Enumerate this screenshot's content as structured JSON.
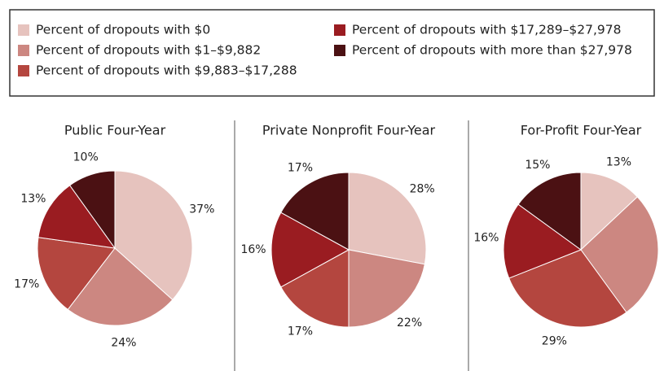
{
  "legend": {
    "categories": [
      "Percent of dropouts with $0",
      "Percent of dropouts with $1–$9,882",
      "Percent of dropouts with $9,883–$17,288",
      "Percent of dropouts with $17,289–$27,978",
      "Percent of dropouts with more than $27,978"
    ],
    "colors": [
      "#e6c3be",
      "#cc8781",
      "#b4463f",
      "#9a1c21",
      "#4b1113"
    ]
  },
  "chart_data": [
    {
      "type": "pie",
      "title": "Public Four-Year",
      "values": [
        37,
        24,
        17,
        13,
        10
      ],
      "value_labels": [
        "37%",
        "24%",
        "17%",
        "13%",
        "10%"
      ]
    },
    {
      "type": "pie",
      "title": "Private Nonprofit Four-Year",
      "values": [
        28,
        22,
        17,
        16,
        17
      ],
      "value_labels": [
        "28%",
        "22%",
        "17%",
        "16%",
        "17%"
      ]
    },
    {
      "type": "pie",
      "title": "For-Profit Four-Year",
      "values": [
        13,
        27,
        29,
        16,
        15
      ],
      "value_labels": [
        "13%",
        null,
        "29%",
        "16%",
        "15%"
      ]
    }
  ]
}
